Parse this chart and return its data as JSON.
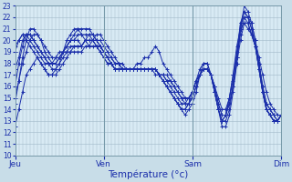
{
  "background_color": "#c8dde8",
  "plot_background": "#d8eaf4",
  "grid_color": "#a0b8c8",
  "line_color": "#1a2eaa",
  "xlabel": "Température (°c)",
  "ylim": [
    10,
    23
  ],
  "yticks": [
    10,
    11,
    12,
    13,
    14,
    15,
    16,
    17,
    18,
    19,
    20,
    21,
    22,
    23
  ],
  "day_labels": [
    "Jeu",
    "Ven",
    "Sam",
    "Dim"
  ],
  "day_positions": [
    0,
    24,
    48,
    72
  ],
  "total_points": 73,
  "series": [
    [
      12.5,
      14.0,
      15.5,
      17.0,
      17.5,
      18.0,
      18.5,
      18.0,
      17.5,
      17.0,
      17.0,
      17.5,
      18.0,
      19.0,
      20.0,
      20.5,
      21.0,
      21.0,
      20.5,
      20.0,
      19.5,
      20.0,
      20.5,
      20.5,
      20.0,
      19.5,
      19.0,
      18.5,
      18.0,
      18.0,
      17.5,
      17.5,
      17.5,
      18.0,
      18.0,
      18.5,
      18.5,
      19.0,
      19.5,
      19.0,
      18.0,
      17.5,
      17.0,
      16.5,
      16.0,
      15.5,
      15.0,
      15.0,
      15.5,
      16.5,
      17.5,
      18.0,
      18.0,
      17.0,
      15.5,
      14.0,
      13.0,
      13.0,
      14.0,
      16.0,
      18.5,
      21.5,
      22.5,
      22.0,
      21.0,
      19.5,
      17.5,
      15.5,
      14.0,
      13.5,
      13.0,
      13.0,
      13.5
    ],
    [
      15.0,
      16.5,
      18.0,
      19.0,
      20.0,
      20.5,
      20.5,
      20.0,
      19.5,
      19.0,
      18.5,
      18.5,
      18.5,
      19.0,
      19.5,
      20.0,
      20.0,
      20.0,
      19.5,
      20.0,
      20.5,
      20.5,
      20.0,
      20.0,
      19.5,
      19.0,
      18.5,
      18.0,
      18.0,
      17.5,
      17.5,
      17.5,
      17.5,
      17.5,
      17.5,
      17.5,
      17.5,
      17.5,
      17.5,
      17.0,
      17.0,
      16.5,
      16.5,
      16.0,
      15.5,
      15.0,
      14.5,
      14.5,
      15.0,
      16.0,
      17.0,
      17.5,
      17.5,
      17.0,
      16.0,
      14.5,
      13.5,
      13.5,
      14.5,
      16.0,
      18.0,
      20.0,
      21.5,
      21.5,
      20.5,
      19.5,
      18.0,
      16.0,
      14.5,
      14.0,
      13.5,
      13.0,
      13.5
    ],
    [
      17.5,
      18.5,
      20.0,
      20.5,
      20.5,
      20.0,
      19.5,
      19.0,
      18.5,
      18.0,
      18.0,
      18.0,
      18.5,
      19.0,
      19.0,
      19.5,
      19.5,
      19.5,
      19.5,
      20.0,
      20.0,
      20.0,
      20.0,
      19.5,
      19.0,
      18.5,
      18.5,
      18.0,
      18.0,
      17.5,
      17.5,
      17.5,
      17.5,
      17.5,
      17.5,
      17.5,
      17.5,
      17.5,
      17.5,
      17.0,
      17.0,
      17.0,
      16.5,
      16.0,
      15.5,
      15.0,
      15.0,
      15.0,
      15.5,
      16.5,
      17.0,
      17.5,
      17.5,
      17.0,
      16.0,
      15.0,
      14.0,
      14.0,
      15.0,
      16.5,
      18.5,
      20.5,
      22.0,
      22.0,
      21.5,
      20.0,
      18.5,
      17.0,
      15.5,
      14.5,
      14.0,
      13.5,
      13.5
    ],
    [
      19.0,
      20.0,
      20.5,
      20.5,
      20.0,
      19.5,
      19.0,
      18.5,
      18.0,
      18.0,
      17.5,
      17.5,
      18.0,
      18.5,
      19.0,
      19.0,
      19.5,
      19.5,
      19.5,
      20.0,
      20.0,
      20.0,
      19.5,
      19.5,
      19.0,
      18.5,
      18.0,
      17.5,
      17.5,
      17.5,
      17.5,
      17.5,
      17.5,
      17.5,
      17.5,
      17.5,
      17.5,
      17.5,
      17.5,
      17.0,
      17.0,
      16.5,
      16.0,
      15.5,
      15.0,
      14.5,
      14.5,
      15.0,
      15.5,
      16.5,
      17.0,
      17.5,
      17.5,
      17.0,
      15.5,
      14.0,
      13.0,
      13.5,
      15.0,
      17.0,
      19.5,
      21.0,
      21.5,
      21.0,
      20.5,
      19.5,
      18.0,
      16.0,
      14.5,
      14.0,
      13.5,
      13.0,
      13.5
    ],
    [
      19.5,
      20.0,
      20.5,
      20.0,
      19.5,
      19.0,
      18.5,
      18.0,
      17.5,
      17.0,
      17.0,
      17.0,
      17.5,
      18.0,
      18.5,
      19.0,
      19.0,
      19.0,
      19.0,
      19.5,
      19.5,
      19.5,
      19.5,
      19.0,
      18.5,
      18.0,
      18.0,
      17.5,
      17.5,
      17.5,
      17.5,
      17.5,
      17.5,
      17.5,
      17.5,
      17.5,
      17.5,
      17.5,
      17.0,
      17.0,
      16.5,
      16.0,
      15.5,
      15.0,
      14.5,
      14.0,
      14.0,
      14.5,
      15.5,
      16.5,
      17.0,
      17.5,
      17.5,
      17.0,
      15.5,
      14.0,
      13.0,
      13.5,
      15.0,
      17.0,
      19.0,
      21.5,
      22.0,
      21.5,
      20.5,
      19.5,
      17.5,
      15.5,
      14.0,
      13.5,
      13.0,
      13.0,
      13.5
    ],
    [
      16.0,
      18.0,
      19.5,
      20.5,
      20.5,
      20.0,
      19.5,
      19.0,
      18.5,
      18.0,
      18.0,
      18.5,
      19.0,
      19.0,
      19.5,
      20.0,
      20.0,
      20.5,
      20.5,
      20.5,
      20.5,
      20.0,
      19.5,
      19.0,
      18.5,
      18.0,
      18.0,
      17.5,
      17.5,
      17.5,
      17.5,
      17.5,
      17.5,
      17.5,
      17.5,
      17.5,
      17.5,
      17.5,
      17.5,
      17.0,
      16.5,
      16.0,
      15.5,
      15.0,
      14.5,
      14.0,
      14.0,
      14.5,
      15.0,
      16.0,
      17.0,
      17.5,
      17.5,
      17.0,
      16.0,
      14.5,
      13.5,
      13.5,
      14.5,
      16.0,
      18.5,
      21.0,
      22.5,
      22.0,
      21.0,
      19.5,
      17.5,
      15.5,
      14.0,
      13.5,
      13.0,
      13.0,
      13.5
    ],
    [
      14.5,
      16.5,
      18.5,
      20.0,
      21.0,
      21.0,
      20.5,
      20.0,
      19.0,
      18.5,
      18.0,
      18.0,
      18.5,
      19.0,
      19.5,
      20.0,
      20.5,
      21.0,
      21.0,
      21.0,
      21.0,
      20.5,
      20.0,
      19.5,
      19.0,
      18.5,
      18.0,
      17.5,
      17.5,
      17.5,
      17.5,
      17.5,
      17.5,
      17.5,
      17.5,
      17.5,
      17.5,
      17.5,
      17.5,
      17.0,
      16.5,
      16.0,
      15.5,
      15.0,
      14.5,
      14.0,
      13.5,
      14.0,
      14.5,
      15.5,
      17.0,
      18.0,
      18.0,
      17.0,
      15.5,
      14.0,
      12.5,
      12.5,
      13.5,
      15.5,
      18.0,
      21.0,
      23.0,
      22.5,
      21.5,
      20.0,
      18.0,
      15.5,
      14.0,
      13.5,
      13.0,
      13.0,
      13.5
    ]
  ]
}
